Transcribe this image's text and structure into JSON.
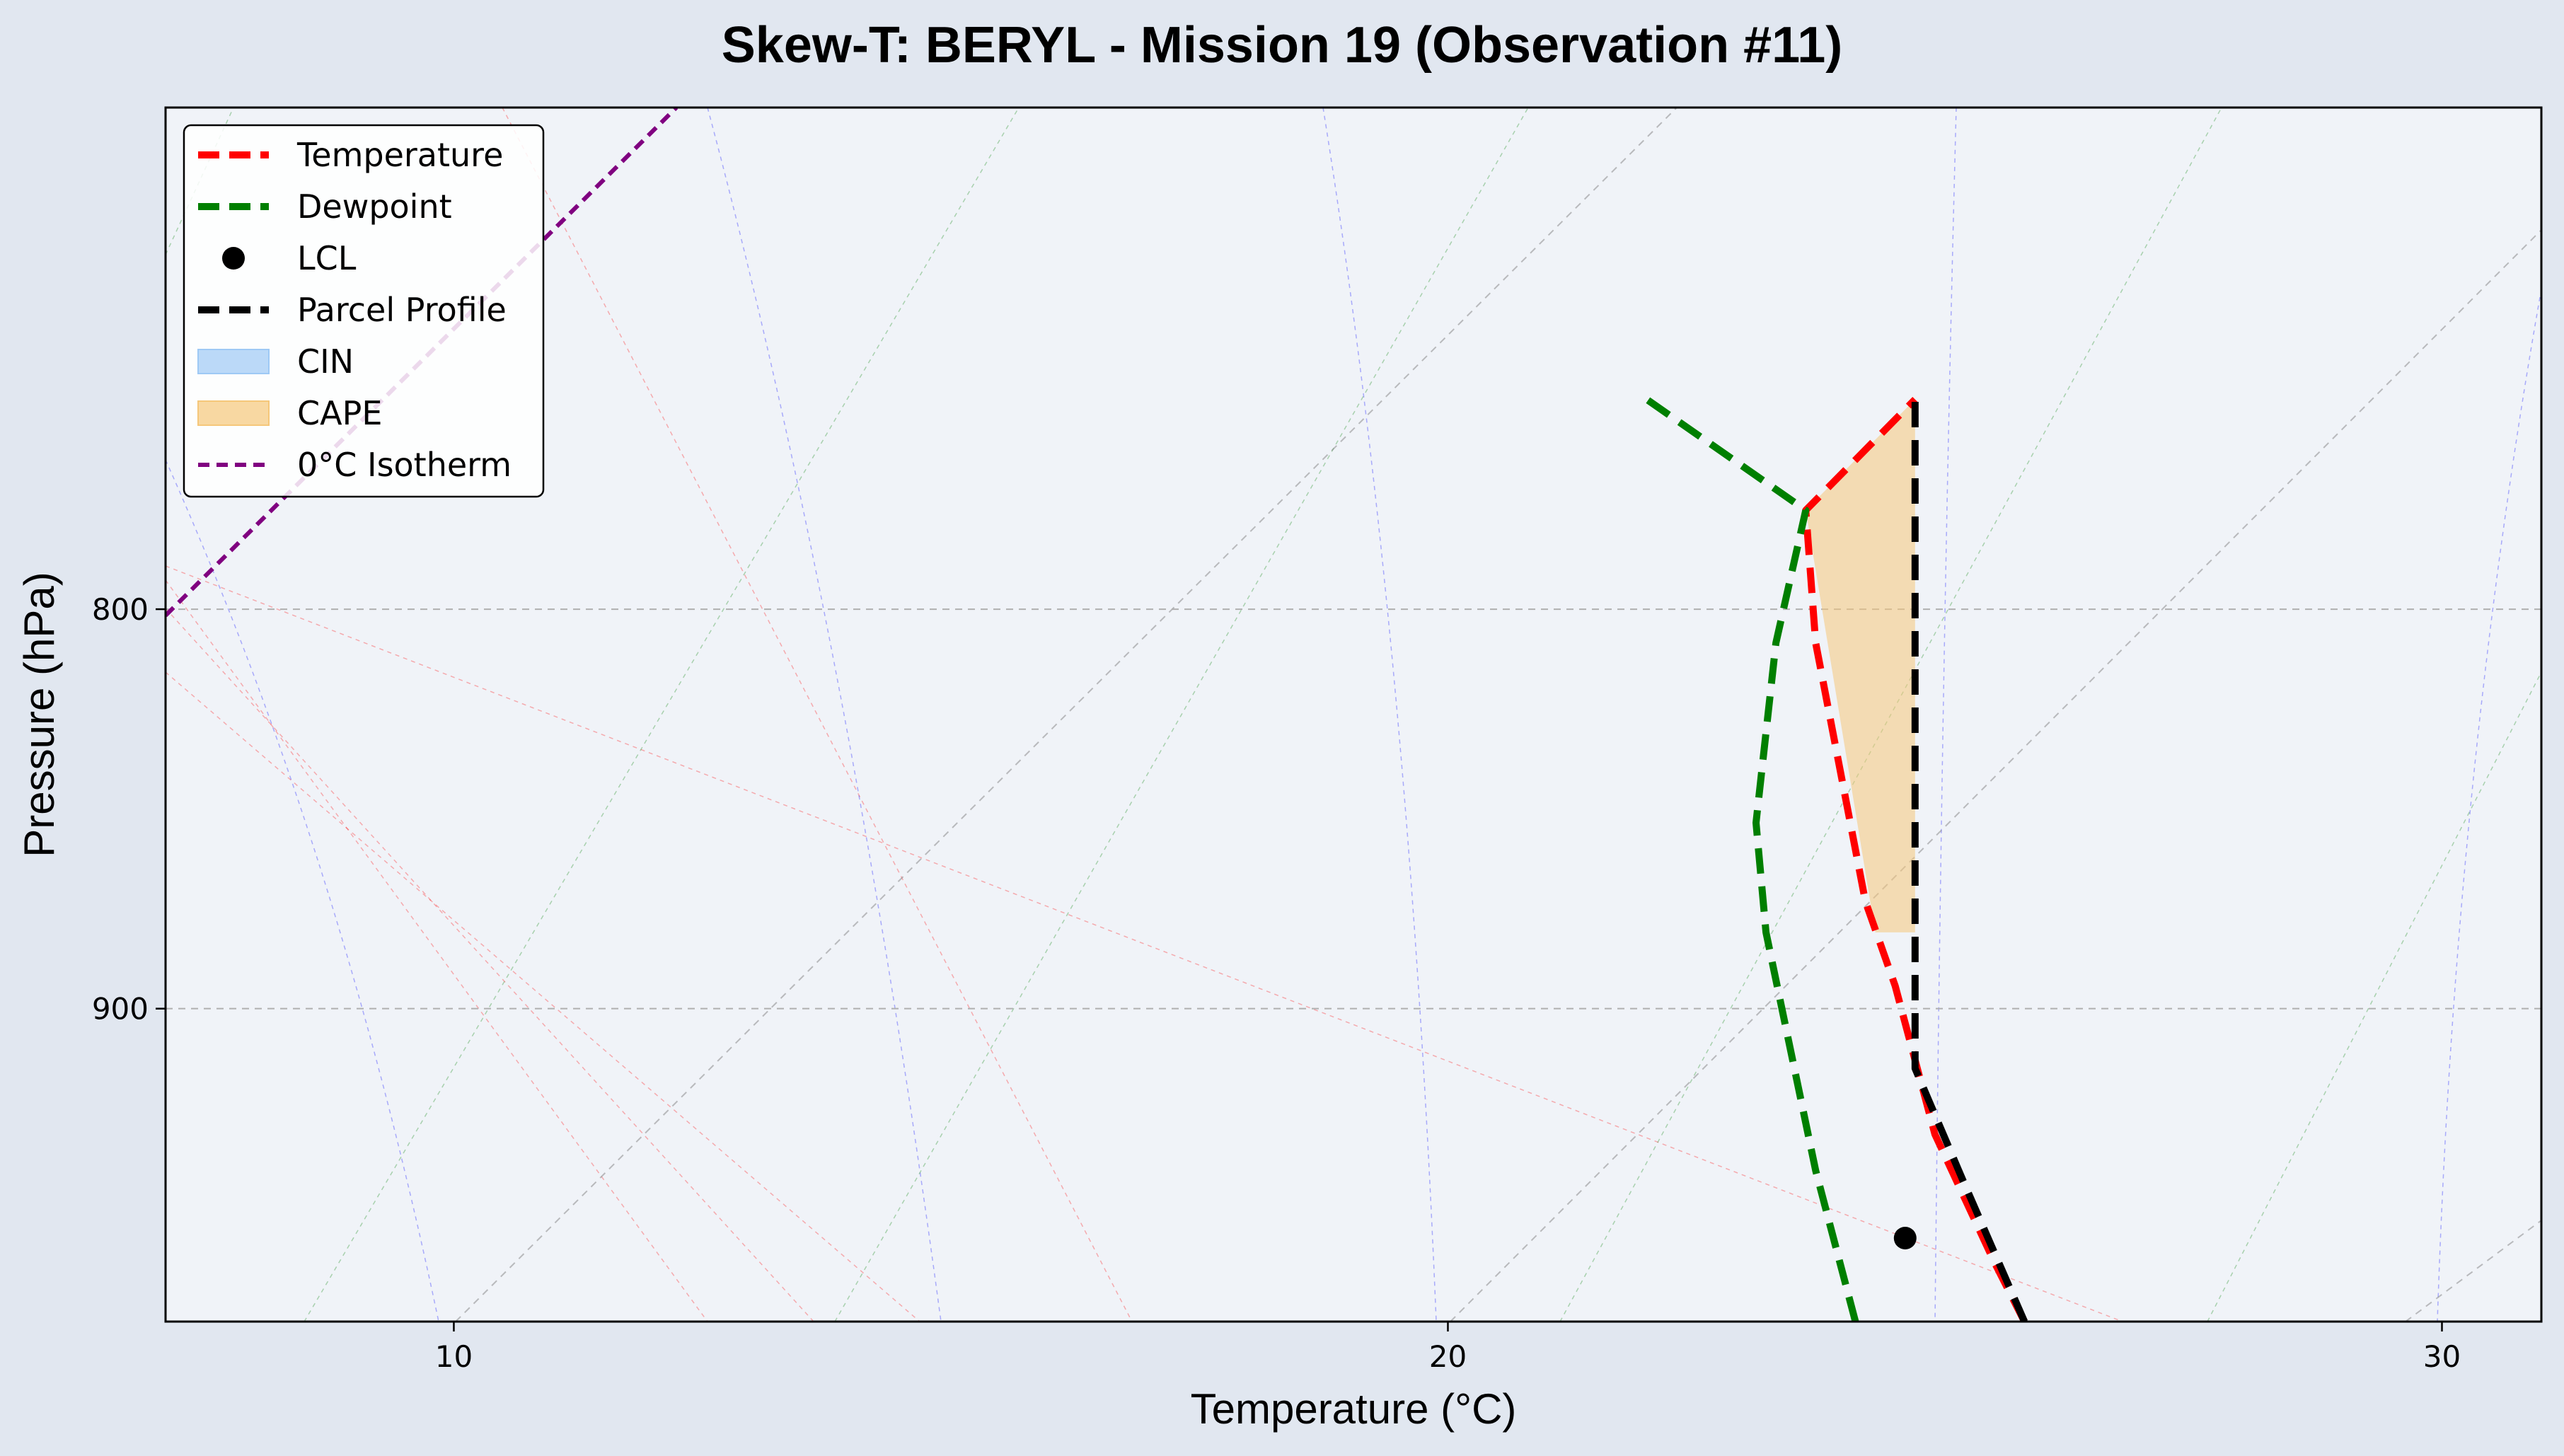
{
  "chart_data": {
    "type": "line",
    "title": "Skew-T: BERYL - Mission 19 (Observation #11)",
    "xlabel": "Temperature (°C)",
    "ylabel": "Pressure (hPa)",
    "xlim": [
      7.1,
      31.0
    ],
    "ylim": [
      987,
      690
    ],
    "y_scale": "log",
    "skew": 0,
    "x_ticks": [
      10,
      20,
      30
    ],
    "y_ticks": [
      800,
      900
    ],
    "grid": true,
    "legend_position": "upper left",
    "series": [
      {
        "name": "Temperature",
        "color": "#ff0000",
        "style": "dashed",
        "points": [
          [
            25.8,
            987
          ],
          [
            25.5,
            970
          ],
          [
            24.9,
            934
          ],
          [
            24.5,
            894
          ],
          [
            24.2,
            872
          ],
          [
            23.7,
            808
          ],
          [
            23.6,
            777
          ],
          [
            24.7,
            752
          ]
        ]
      },
      {
        "name": "Dewpoint",
        "color": "#007f00",
        "style": "dashed",
        "points": [
          [
            24.1,
            987
          ],
          [
            23.7,
            944
          ],
          [
            23.2,
            880
          ],
          [
            23.1,
            852
          ],
          [
            23.3,
            808
          ],
          [
            23.6,
            777
          ],
          [
            22.0,
            752
          ]
        ]
      },
      {
        "name": "Parcel Profile",
        "color": "#000000",
        "style": "dashed",
        "points": [
          [
            25.8,
            987
          ],
          [
            25.2,
            948
          ],
          [
            24.7,
            916
          ],
          [
            24.7,
            890
          ],
          [
            24.7,
            850
          ],
          [
            24.7,
            752
          ]
        ]
      }
    ],
    "lcl": {
      "name": "LCL",
      "temperature": 24.6,
      "pressure": 963
    },
    "cape": {
      "name": "CAPE",
      "color": "#f5c77a",
      "points": [
        [
          23.6,
          777
        ],
        [
          24.7,
          752
        ],
        [
          24.7,
          880
        ],
        [
          24.3,
          880
        ]
      ]
    },
    "cin": {
      "name": "CIN",
      "color": "#9ec9f5"
    },
    "isotherm_0c": {
      "name": "0°C Isotherm",
      "color": "#800080"
    }
  },
  "legend": {
    "items": [
      {
        "label": "Temperature",
        "color": "#ff0000",
        "kind": "dashed-line"
      },
      {
        "label": "Dewpoint",
        "color": "#007f00",
        "kind": "dashed-line"
      },
      {
        "label": "LCL",
        "color": "#000000",
        "kind": "marker"
      },
      {
        "label": "Parcel Profile",
        "color": "#000000",
        "kind": "dashed-line"
      },
      {
        "label": "CIN",
        "color": "#9ec9f5",
        "kind": "patch"
      },
      {
        "label": "CAPE",
        "color": "#f5c77a",
        "kind": "patch"
      },
      {
        "label": "0°C Isotherm",
        "color": "#800080",
        "kind": "thin-dashed-line"
      }
    ]
  }
}
